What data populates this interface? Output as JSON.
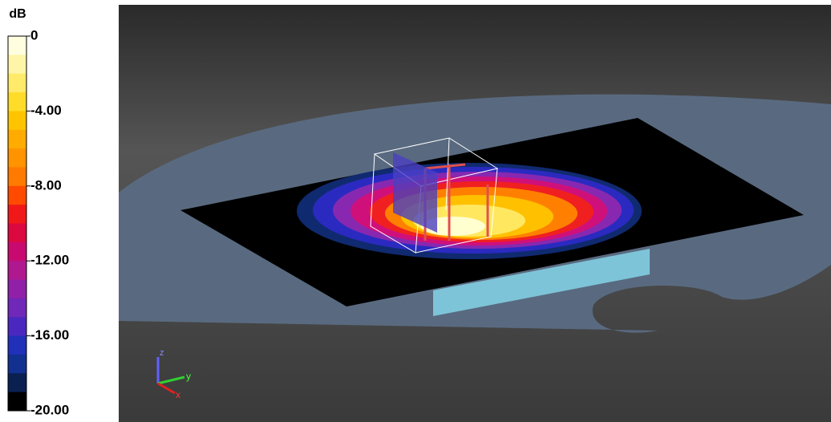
{
  "colorbar": {
    "unit": "dB",
    "ticks": [
      {
        "value": 0,
        "label": "0"
      },
      {
        "value": -4,
        "label": "-4.00"
      },
      {
        "value": -8,
        "label": "-8.00"
      },
      {
        "value": -12,
        "label": "-12.00"
      },
      {
        "value": -16,
        "label": "-16.00"
      },
      {
        "value": -20,
        "label": "-20.00"
      }
    ],
    "colors": [
      "#ffffe0",
      "#fff5a8",
      "#ffea6a",
      "#ffdc2a",
      "#ffc400",
      "#ffab00",
      "#ff9300",
      "#ff7a00",
      "#ff4a00",
      "#f01818",
      "#dc0840",
      "#c80a70",
      "#b01890",
      "#9020a8",
      "#7028b8",
      "#4a28c0",
      "#2030b8",
      "#123090",
      "#0a2050",
      "#000000"
    ]
  },
  "triad": {
    "x": "x",
    "y": "y",
    "z": "z"
  }
}
